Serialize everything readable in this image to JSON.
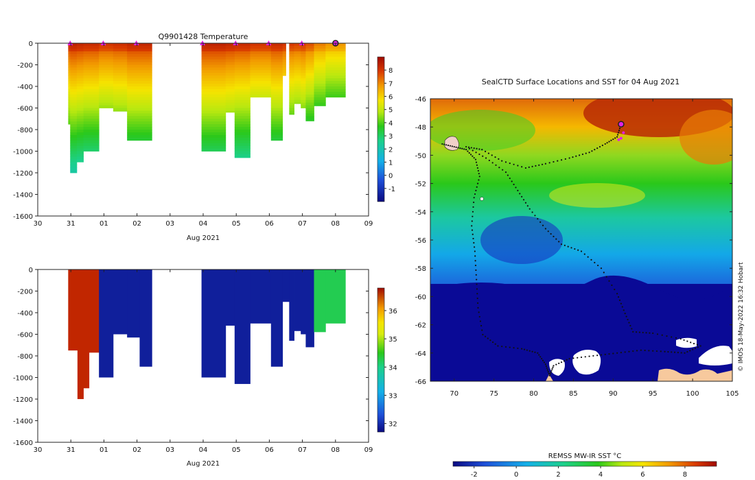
{
  "chart_data": [
    {
      "type": "heatmap",
      "title": "Q9901428  Temperature",
      "xlabel": "Aug 2021",
      "x_tick_labels": [
        "30",
        "31",
        "01",
        "02",
        "03",
        "04",
        "05",
        "06",
        "07",
        "08",
        "09"
      ],
      "ylim": [
        -1600,
        0
      ],
      "y_tick_labels": [
        "0",
        "-200",
        "-400",
        "-600",
        "-800",
        "-1000",
        "-1200",
        "-1400",
        "-1600"
      ],
      "colorbar_ticks": [
        "8",
        "7",
        "6",
        "5",
        "4",
        "3",
        "2",
        "1",
        "0",
        "-1"
      ],
      "colorbar_range": [
        -2,
        9
      ],
      "profile_marker_days": [
        0.98,
        1.98,
        2.98,
        4.98,
        5.98,
        6.98,
        7.98
      ],
      "last_profile_day": 9.0,
      "profiles": [
        {
          "day": 0.92,
          "end": 0.98,
          "depth": 750,
          "surface": 8.2
        },
        {
          "day": 0.98,
          "end": 1.18,
          "depth": 1200,
          "surface": 8.4
        },
        {
          "day": 1.18,
          "end": 1.38,
          "depth": 1100,
          "surface": 8.3
        },
        {
          "day": 1.38,
          "end": 1.85,
          "depth": 1000,
          "surface": 8.2
        },
        {
          "day": 1.85,
          "end": 2.28,
          "depth": 600,
          "surface": 8.0
        },
        {
          "day": 2.28,
          "end": 2.7,
          "depth": 630,
          "surface": 8.1
        },
        {
          "day": 2.7,
          "end": 3.45,
          "depth": 900,
          "surface": 8.3
        },
        {
          "day": 4.95,
          "end": 5.68,
          "depth": 1000,
          "surface": 8.4
        },
        {
          "day": 5.68,
          "end": 5.95,
          "depth": 640,
          "surface": 8.3
        },
        {
          "day": 5.95,
          "end": 6.42,
          "depth": 1060,
          "surface": 8.2
        },
        {
          "day": 6.42,
          "end": 7.05,
          "depth": 500,
          "surface": 8.0
        },
        {
          "day": 7.05,
          "end": 7.4,
          "depth": 900,
          "surface": 8.2
        },
        {
          "day": 7.4,
          "end": 7.5,
          "depth": 300,
          "surface": 8.0
        },
        {
          "day": 7.6,
          "end": 7.75,
          "depth": 660,
          "surface": 7.9
        },
        {
          "day": 7.75,
          "end": 7.95,
          "depth": 560,
          "surface": 7.8
        },
        {
          "day": 7.95,
          "end": 8.1,
          "depth": 600,
          "surface": 7.9
        },
        {
          "day": 8.1,
          "end": 8.35,
          "depth": 720,
          "surface": 7.6
        },
        {
          "day": 8.35,
          "end": 8.7,
          "depth": 580,
          "surface": 7.1
        },
        {
          "day": 8.7,
          "end": 9.3,
          "depth": 500,
          "surface": 6.8
        }
      ]
    },
    {
      "type": "heatmap",
      "title": "",
      "xlabel": "Aug 2021",
      "x_tick_labels": [
        "30",
        "31",
        "01",
        "02",
        "03",
        "04",
        "05",
        "06",
        "07",
        "08",
        "09"
      ],
      "ylim": [
        -1600,
        0
      ],
      "y_tick_labels": [
        "0",
        "-200",
        "-400",
        "-600",
        "-800",
        "-1000",
        "-1200",
        "-1400",
        "-1600"
      ],
      "colorbar_ticks": [
        "36",
        "35",
        "34",
        "33",
        "32"
      ],
      "colorbar_range": [
        31.7,
        36.8
      ],
      "profiles": [
        {
          "day": 0.92,
          "end": 1.2,
          "depth": 750,
          "value": 36.5
        },
        {
          "day": 1.2,
          "end": 1.38,
          "depth": 1200,
          "value": 36.5
        },
        {
          "day": 1.38,
          "end": 1.55,
          "depth": 1100,
          "value": 36.5
        },
        {
          "day": 1.55,
          "end": 1.85,
          "depth": 770,
          "value": 36.5
        },
        {
          "day": 1.85,
          "end": 2.28,
          "depth": 1000,
          "value": 31.9
        },
        {
          "day": 2.28,
          "end": 2.7,
          "depth": 600,
          "value": 31.9
        },
        {
          "day": 2.7,
          "end": 3.08,
          "depth": 630,
          "value": 31.9
        },
        {
          "day": 3.08,
          "end": 3.45,
          "depth": 900,
          "value": 31.9
        },
        {
          "day": 4.95,
          "end": 5.68,
          "depth": 1000,
          "value": 31.9
        },
        {
          "day": 5.68,
          "end": 5.95,
          "depth": 520,
          "value": 31.9
        },
        {
          "day": 5.95,
          "end": 6.42,
          "depth": 1060,
          "value": 31.9
        },
        {
          "day": 6.42,
          "end": 7.05,
          "depth": 500,
          "value": 31.9
        },
        {
          "day": 7.05,
          "end": 7.4,
          "depth": 900,
          "value": 31.9
        },
        {
          "day": 7.4,
          "end": 7.6,
          "depth": 300,
          "value": 31.9
        },
        {
          "day": 7.6,
          "end": 7.75,
          "depth": 660,
          "value": 31.9
        },
        {
          "day": 7.75,
          "end": 7.95,
          "depth": 570,
          "value": 31.9
        },
        {
          "day": 7.95,
          "end": 8.1,
          "depth": 600,
          "value": 31.9
        },
        {
          "day": 8.1,
          "end": 8.35,
          "depth": 720,
          "value": 31.9
        },
        {
          "day": 8.35,
          "end": 8.7,
          "depth": 580,
          "value": 34.1
        },
        {
          "day": 8.7,
          "end": 9.3,
          "depth": 500,
          "value": 34.1
        }
      ]
    },
    {
      "type": "heatmap",
      "title": "SealCTD Surface Locations and SST for 04 Aug 2021",
      "xlabel": "",
      "xlim": [
        67,
        105
      ],
      "ylim": [
        -66,
        -46
      ],
      "x_tick_labels": [
        "70",
        "75",
        "80",
        "85",
        "90",
        "95",
        "100",
        "105"
      ],
      "y_tick_labels": [
        "-46",
        "-48",
        "-50",
        "-52",
        "-54",
        "-56",
        "-58",
        "-60",
        "-62",
        "-64",
        "-66"
      ],
      "colorbar_label": "REMSS MW-IR SST °C",
      "colorbar_ticks": [
        "-2",
        "0",
        "2",
        "4",
        "6",
        "8"
      ],
      "colorbar_range": [
        -3,
        9.5
      ],
      "credit": "© IMOS 18-May-2022 16:32 Hobart",
      "latest_location": {
        "lon": 91.0,
        "lat": -47.8
      },
      "track": [
        [
          68.5,
          -49.2
        ],
        [
          70.0,
          -49.4
        ],
        [
          71.5,
          -49.6
        ],
        [
          72.7,
          -50.3
        ],
        [
          73.2,
          -51.5
        ],
        [
          72.5,
          -53.0
        ],
        [
          72.2,
          -55.0
        ],
        [
          72.6,
          -56.8
        ],
        [
          72.8,
          -58.8
        ],
        [
          73.0,
          -60.8
        ],
        [
          73.6,
          -62.7
        ],
        [
          75.5,
          -63.5
        ],
        [
          78.5,
          -63.7
        ],
        [
          80.5,
          -64.0
        ],
        [
          81.5,
          -64.8
        ],
        [
          82.0,
          -65.6
        ],
        [
          82.5,
          -64.9
        ],
        [
          84.5,
          -64.4
        ],
        [
          87.5,
          -64.2
        ],
        [
          90.5,
          -64.0
        ],
        [
          93.5,
          -63.8
        ],
        [
          96.5,
          -63.9
        ],
        [
          99.0,
          -64.0
        ],
        [
          101.0,
          -63.5
        ],
        [
          98.5,
          -63.0
        ],
        [
          95.0,
          -62.6
        ],
        [
          92.5,
          -62.5
        ],
        [
          91.5,
          -61.2
        ],
        [
          90.5,
          -59.8
        ],
        [
          88.5,
          -58.0
        ],
        [
          86.0,
          -56.8
        ],
        [
          83.5,
          -56.3
        ],
        [
          81.5,
          -55.2
        ],
        [
          79.5,
          -53.8
        ],
        [
          78.0,
          -52.5
        ],
        [
          76.5,
          -51.2
        ],
        [
          74.0,
          -50.2
        ],
        [
          71.5,
          -49.4
        ],
        [
          73.5,
          -49.6
        ],
        [
          76.0,
          -50.4
        ],
        [
          79.0,
          -50.9
        ],
        [
          81.5,
          -50.6
        ],
        [
          84.5,
          -50.2
        ],
        [
          87.0,
          -49.8
        ],
        [
          89.0,
          -49.2
        ],
        [
          90.5,
          -48.7
        ],
        [
          91.0,
          -47.8
        ]
      ]
    }
  ]
}
